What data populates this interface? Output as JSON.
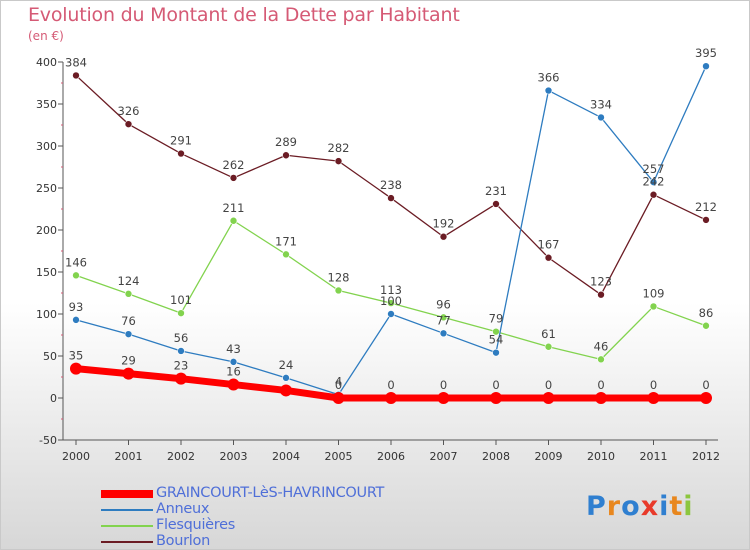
{
  "title": "Evolution du Montant de la Dette par Habitant",
  "unit": "(en €)",
  "logo": "Proxiti",
  "chart_data": {
    "type": "line",
    "title": "Evolution du Montant de la Dette par Habitant",
    "ylabel": "(en €)",
    "x": [
      "2000",
      "2001",
      "2002",
      "2003",
      "2004",
      "2005",
      "2006",
      "2007",
      "2008",
      "2009",
      "2010",
      "2011",
      "2012"
    ],
    "ylim": [
      -50,
      400
    ],
    "yticks": [
      -50,
      0,
      50,
      100,
      150,
      200,
      250,
      300,
      350,
      400
    ],
    "grid": false,
    "legend_position": "bottom-left",
    "series": [
      {
        "name": "GRAINCOURT-LèS-HAVRINCOURT",
        "color": "#ff0000",
        "values": [
          35,
          29,
          23,
          16,
          9,
          0,
          0,
          0,
          0,
          0,
          0,
          0,
          0
        ]
      },
      {
        "name": "Anneux",
        "color": "#2e7cc0",
        "values": [
          93,
          76,
          56,
          43,
          24,
          4,
          100,
          77,
          54,
          366,
          334,
          257,
          395
        ]
      },
      {
        "name": "Flesquières",
        "color": "#82d34e",
        "values": [
          146,
          124,
          101,
          211,
          171,
          128,
          113,
          96,
          79,
          61,
          46,
          109,
          86
        ]
      },
      {
        "name": "Bourlon",
        "color": "#6b1c24",
        "values": [
          384,
          326,
          291,
          262,
          289,
          282,
          238,
          192,
          231,
          167,
          123,
          242,
          212
        ]
      }
    ],
    "data_labels": [
      [
        "35",
        "29",
        "23",
        "16",
        "",
        "0",
        "0",
        "0",
        "0",
        "0",
        "0",
        "0",
        "0"
      ],
      [
        "93",
        "76",
        "56",
        "43",
        "24",
        "4",
        "100",
        "77",
        "54",
        "366",
        "334",
        "257",
        "395"
      ],
      [
        "146",
        "124",
        "101",
        "211",
        "171",
        "128",
        "113",
        "96",
        "79",
        "61",
        "46",
        "109",
        "86"
      ],
      [
        "384",
        "326",
        "291",
        "262",
        "289",
        "282",
        "238",
        "192",
        "231",
        "167",
        "123",
        "242",
        "212"
      ]
    ]
  }
}
